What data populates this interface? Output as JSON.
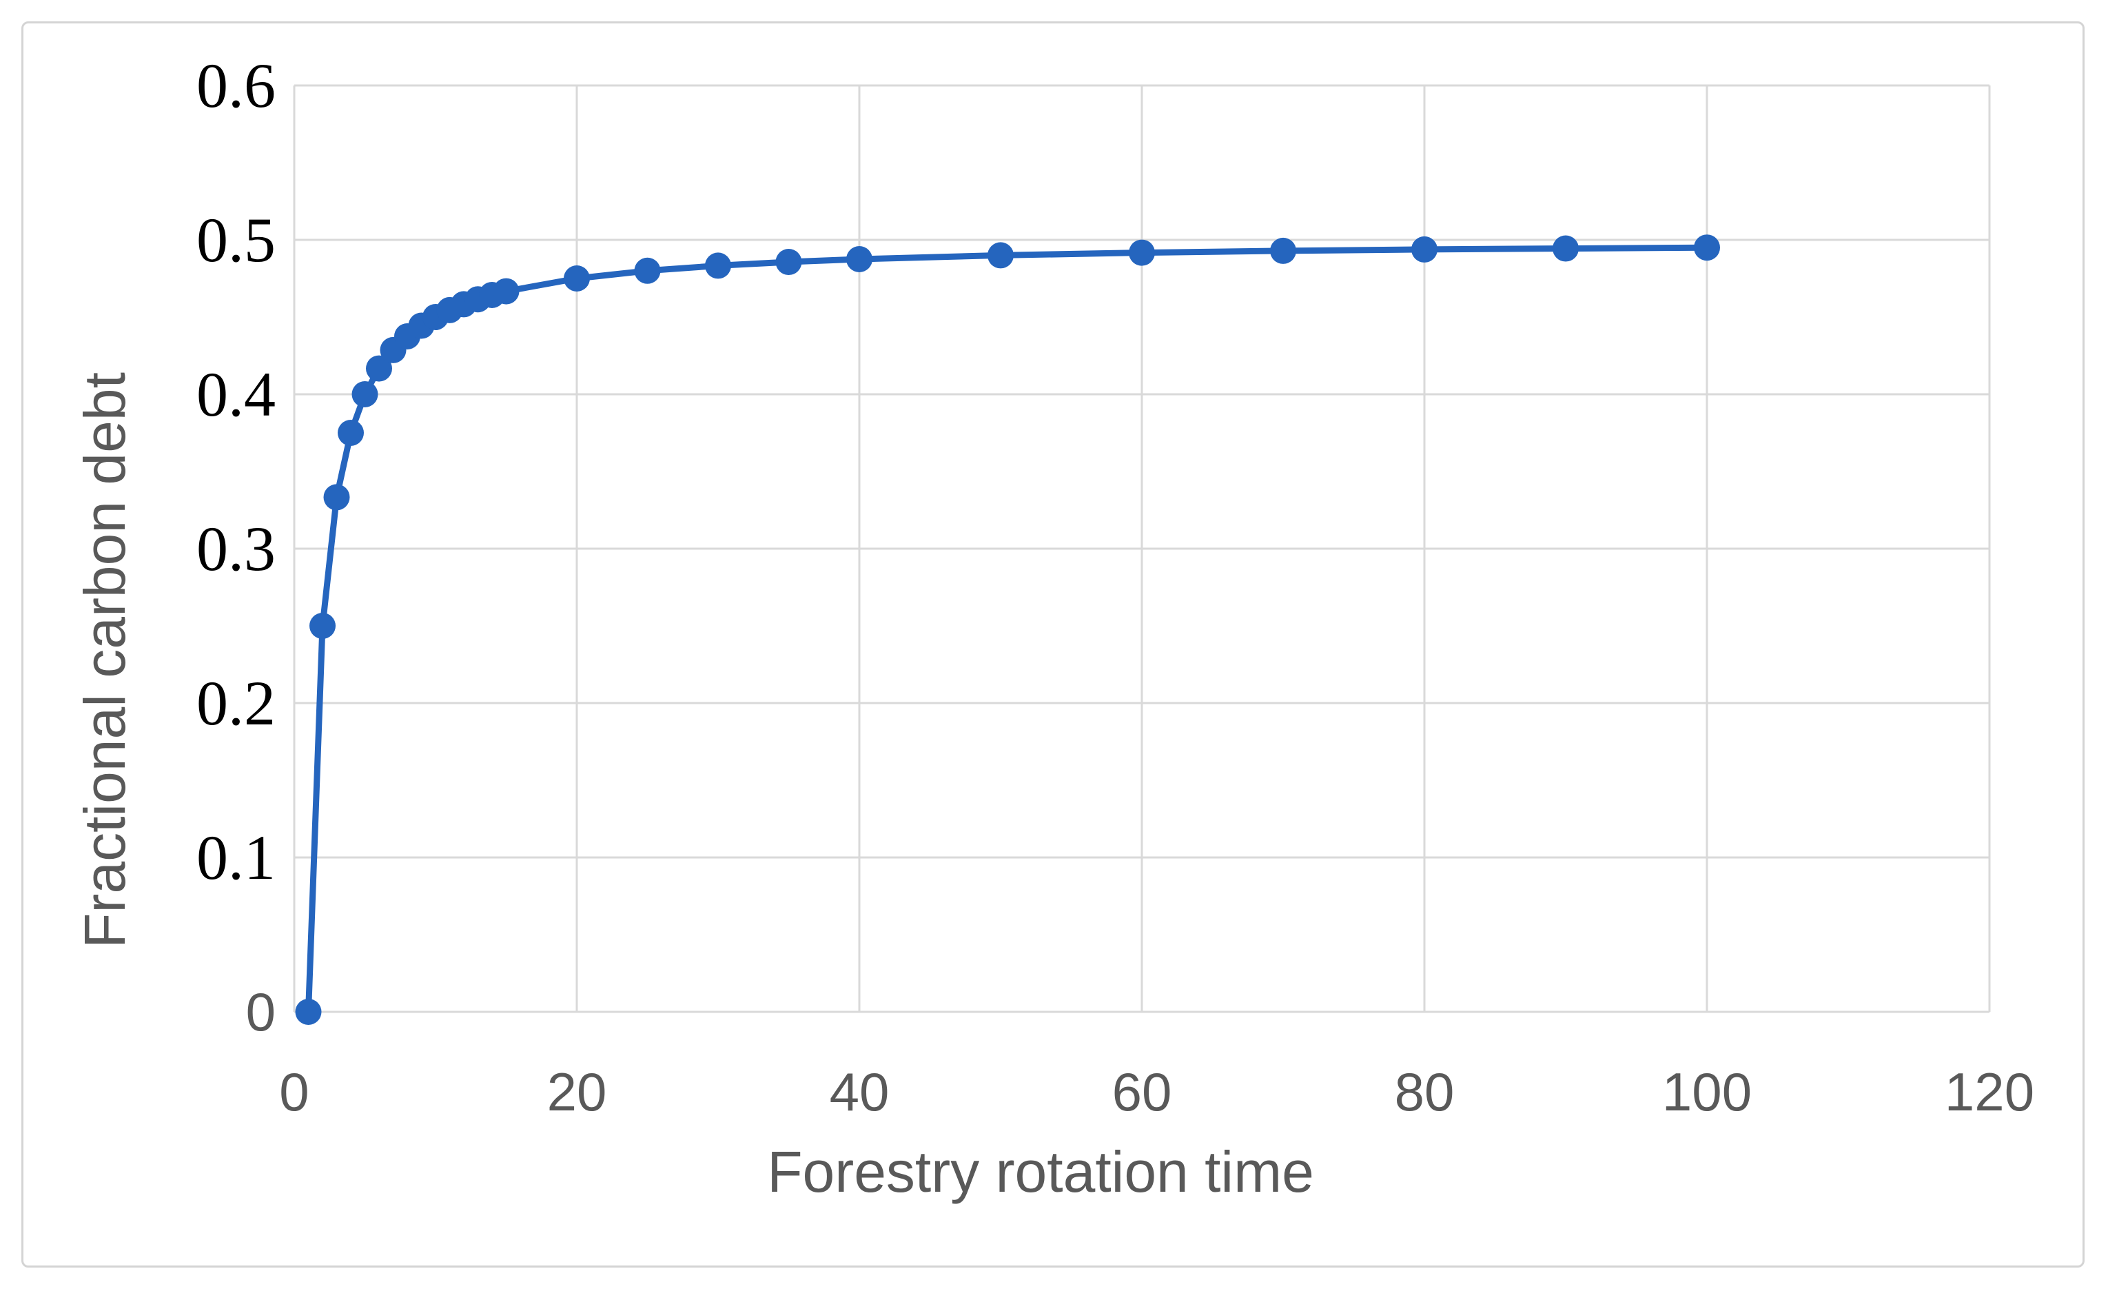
{
  "figure": {
    "background": "#ffffff",
    "frame_color": "#d4d4d4"
  },
  "chart_data": {
    "type": "line",
    "title": "",
    "xlabel": "Forestry rotation time",
    "ylabel": "Fractional carbon debt",
    "xlim": [
      0,
      120
    ],
    "ylim": [
      0,
      0.6
    ],
    "grid": true,
    "legend": "none",
    "marker": "circle",
    "line_color": "#2565be",
    "grid_color": "#d9d9d9",
    "tick_color_x": "#595959",
    "tick_color_y": "#000000",
    "x": [
      1,
      2,
      3,
      4,
      5,
      6,
      7,
      8,
      9,
      10,
      11,
      12,
      13,
      14,
      15,
      20,
      25,
      30,
      35,
      40,
      50,
      60,
      70,
      80,
      90,
      100
    ],
    "y": [
      0,
      0.25,
      0.3333,
      0.375,
      0.4,
      0.4167,
      0.4286,
      0.4375,
      0.4444,
      0.45,
      0.4545,
      0.4583,
      0.4615,
      0.4643,
      0.4667,
      0.475,
      0.48,
      0.4833,
      0.4857,
      0.4875,
      0.49,
      0.4917,
      0.4929,
      0.4938,
      0.4944,
      0.495
    ],
    "x_ticks": [
      {
        "v": 0,
        "label": "0"
      },
      {
        "v": 20,
        "label": "20"
      },
      {
        "v": 40,
        "label": "40"
      },
      {
        "v": 60,
        "label": "60"
      },
      {
        "v": 80,
        "label": "80"
      },
      {
        "v": 100,
        "label": "100"
      },
      {
        "v": 120,
        "label": "120"
      }
    ],
    "y_ticks": [
      {
        "v": 0,
        "label": "0",
        "font": "sans"
      },
      {
        "v": 0.1,
        "label": "0.1",
        "font": "serif"
      },
      {
        "v": 0.2,
        "label": "0.2",
        "font": "serif"
      },
      {
        "v": 0.3,
        "label": "0.3",
        "font": "serif"
      },
      {
        "v": 0.4,
        "label": "0.4",
        "font": "serif"
      },
      {
        "v": 0.5,
        "label": "0.5",
        "font": "serif"
      },
      {
        "v": 0.6,
        "label": "0.6",
        "font": "serif"
      }
    ]
  }
}
